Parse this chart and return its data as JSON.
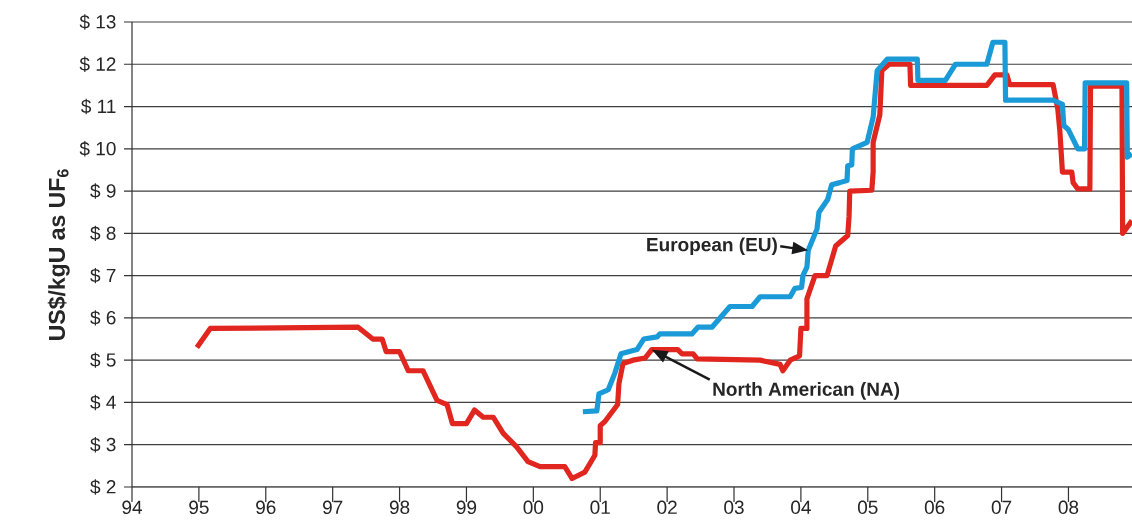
{
  "chart_data": {
    "type": "line",
    "ylabel": "US$/kgU as UF$_{6}$",
    "xlim": [
      1994,
      2008.95
    ],
    "ylim": [
      2,
      13
    ],
    "xticks": [
      {
        "value": 1994,
        "label": "94"
      },
      {
        "value": 1995,
        "label": "95"
      },
      {
        "value": 1996,
        "label": "96"
      },
      {
        "value": 1997,
        "label": "97"
      },
      {
        "value": 1998,
        "label": "98"
      },
      {
        "value": 1999,
        "label": "99"
      },
      {
        "value": 2000,
        "label": "00"
      },
      {
        "value": 2001,
        "label": "01"
      },
      {
        "value": 2002,
        "label": "02"
      },
      {
        "value": 2003,
        "label": "03"
      },
      {
        "value": 2004,
        "label": "04"
      },
      {
        "value": 2005,
        "label": "05"
      },
      {
        "value": 2006,
        "label": "06"
      },
      {
        "value": 2007,
        "label": "07"
      },
      {
        "value": 2008,
        "label": "08"
      }
    ],
    "yticks": [
      {
        "value": 2,
        "label": "$ 2"
      },
      {
        "value": 3,
        "label": "$ 3"
      },
      {
        "value": 4,
        "label": "$ 4"
      },
      {
        "value": 5,
        "label": "$ 5"
      },
      {
        "value": 6,
        "label": "$ 6"
      },
      {
        "value": 7,
        "label": "$ 7"
      },
      {
        "value": 8,
        "label": "$ 8"
      },
      {
        "value": 9,
        "label": "$ 9"
      },
      {
        "value": 10,
        "label": "$ 10"
      },
      {
        "value": 11,
        "label": "$ 11"
      },
      {
        "value": 12,
        "label": "$ 12"
      },
      {
        "value": 13,
        "label": "$ 13"
      }
    ],
    "grid": "y",
    "marker": "none",
    "line_style": "solid",
    "series": [
      {
        "name": "North American (NA)",
        "color": "#e0261f",
        "x": [
          1994.97,
          1995.17,
          1997.38,
          1997.6,
          1997.74,
          1997.8,
          1998.0,
          1998.13,
          1998.35,
          1998.56,
          1998.71,
          1998.79,
          1999.0,
          1999.12,
          1999.25,
          1999.4,
          1999.55,
          1999.75,
          1999.92,
          2000.1,
          2000.47,
          2000.58,
          2000.77,
          2000.92,
          2000.93,
          2001.0,
          2001.0,
          2001.07,
          2001.26,
          2001.28,
          2001.34,
          2001.49,
          2001.67,
          2001.77,
          2002.16,
          2002.22,
          2002.39,
          2002.45,
          2003.39,
          2003.69,
          2003.73,
          2003.84,
          2003.98,
          2004.0,
          2004.09,
          2004.09,
          2004.21,
          2004.39,
          2004.52,
          2004.7,
          2004.72,
          2004.73,
          2005.06,
          2005.08,
          2005.08,
          2005.18,
          2005.21,
          2005.32,
          2005.63,
          2005.64,
          2006.78,
          2006.9,
          2007.08,
          2007.12,
          2007.77,
          2007.84,
          2007.87,
          2007.91,
          2008.05,
          2008.07,
          2008.14,
          2008.32,
          2008.33,
          2008.8,
          2008.81,
          2008.95
        ],
        "values": [
          5.3,
          5.75,
          5.78,
          5.5,
          5.5,
          5.2,
          5.2,
          4.75,
          4.75,
          4.05,
          3.95,
          3.5,
          3.5,
          3.82,
          3.65,
          3.65,
          3.27,
          2.95,
          2.6,
          2.48,
          2.48,
          2.2,
          2.35,
          2.75,
          3.05,
          3.05,
          3.45,
          3.55,
          3.95,
          4.45,
          4.92,
          5.0,
          5.05,
          5.25,
          5.25,
          5.15,
          5.15,
          5.03,
          5.0,
          4.9,
          4.75,
          5.0,
          5.1,
          5.75,
          5.75,
          6.45,
          7.0,
          7.0,
          7.7,
          7.95,
          8.4,
          9.0,
          9.02,
          9.45,
          10.15,
          10.8,
          11.85,
          12.0,
          12.0,
          11.5,
          11.5,
          11.75,
          11.75,
          11.52,
          11.52,
          10.95,
          10.45,
          9.45,
          9.45,
          9.2,
          9.05,
          9.05,
          11.48,
          11.48,
          8.0,
          8.3
        ]
      },
      {
        "name": "European (EU)",
        "color": "#1a9ad6",
        "x": [
          2000.74,
          2000.95,
          2000.98,
          2001.12,
          2001.22,
          2001.31,
          2001.55,
          2001.65,
          2001.85,
          2001.89,
          2002.37,
          2002.46,
          2002.67,
          2002.94,
          2003.27,
          2003.39,
          2003.84,
          2003.91,
          2004.01,
          2004.03,
          2004.09,
          2004.11,
          2004.24,
          2004.27,
          2004.4,
          2004.46,
          2004.58,
          2004.69,
          2004.7,
          2004.76,
          2004.77,
          2004.99,
          2005.08,
          2005.14,
          2005.29,
          2005.74,
          2005.75,
          2006.16,
          2006.31,
          2006.78,
          2006.87,
          2007.05,
          2007.06,
          2007.77,
          2007.91,
          2007.93,
          2008.0,
          2008.14,
          2008.24,
          2008.25,
          2008.87,
          2008.88,
          2008.95
        ],
        "values": [
          3.78,
          3.8,
          4.2,
          4.3,
          4.7,
          5.15,
          5.25,
          5.5,
          5.55,
          5.62,
          5.62,
          5.78,
          5.78,
          6.27,
          6.27,
          6.5,
          6.5,
          6.7,
          6.72,
          7.0,
          7.2,
          7.6,
          8.1,
          8.5,
          8.8,
          9.15,
          9.2,
          9.25,
          9.6,
          9.62,
          10.0,
          10.15,
          10.75,
          11.85,
          12.12,
          12.12,
          11.62,
          11.62,
          12.0,
          12.0,
          12.52,
          12.52,
          11.15,
          11.15,
          11.05,
          10.55,
          10.45,
          10.0,
          10.0,
          11.56,
          11.56,
          9.8,
          9.88
        ]
      }
    ]
  }
}
